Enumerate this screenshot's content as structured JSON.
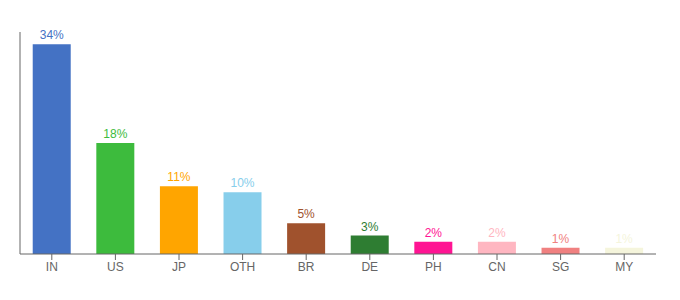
{
  "chart_data": {
    "type": "bar",
    "categories": [
      "IN",
      "US",
      "JP",
      "OTH",
      "BR",
      "DE",
      "PH",
      "CN",
      "SG",
      "MY"
    ],
    "values": [
      34,
      18,
      11,
      10,
      5,
      3,
      2,
      2,
      1,
      1
    ],
    "value_labels": [
      "34%",
      "18%",
      "11%",
      "10%",
      "5%",
      "3%",
      "2%",
      "2%",
      "1%",
      "1%"
    ],
    "data_labels": true,
    "colors": [
      "#4472c4",
      "#3dbb3d",
      "#ffa500",
      "#87ceeb",
      "#a0522d",
      "#2e7d32",
      "#ff1493",
      "#ffb6c1",
      "#f08080",
      "#f5f5dc"
    ],
    "ylim": [
      0,
      36
    ],
    "grid": false,
    "tick_labels": "x"
  }
}
